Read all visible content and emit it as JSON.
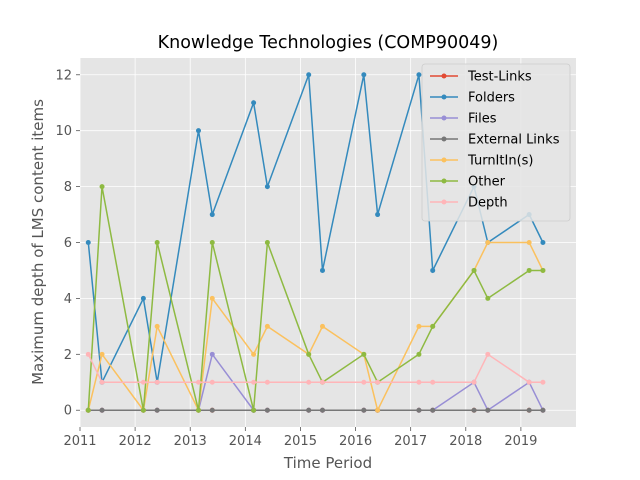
{
  "chart_data": {
    "type": "line",
    "title": "Knowledge Technologies (COMP90049)",
    "xlabel": "Time Period",
    "ylabel": "Maximum depth of LMS content items",
    "xlim": [
      2011.0,
      2020.0
    ],
    "ylim": [
      -0.6,
      12.6
    ],
    "xticks": [
      2011,
      2012,
      2013,
      2014,
      2015,
      2016,
      2017,
      2018,
      2019
    ],
    "yticks": [
      0,
      2,
      4,
      6,
      8,
      10,
      12
    ],
    "grid": true,
    "legend_position": "top-right",
    "x": [
      2011.15,
      2011.4,
      2012.15,
      2012.4,
      2013.15,
      2013.4,
      2014.15,
      2014.4,
      2015.15,
      2015.4,
      2016.15,
      2016.4,
      2017.15,
      2017.4,
      2018.15,
      2018.4,
      2019.15,
      2019.4
    ],
    "series": [
      {
        "name": "Test-Links",
        "color": "#E24A33",
        "values": [
          0,
          0,
          0,
          0,
          0,
          0,
          0,
          0,
          0,
          0,
          0,
          0,
          0,
          0,
          0,
          0,
          0,
          0
        ]
      },
      {
        "name": "Folders",
        "color": "#348ABD",
        "values": [
          6,
          1,
          4,
          1,
          10,
          7,
          11,
          8,
          12,
          5,
          12,
          7,
          12,
          5,
          8,
          6,
          7,
          6
        ]
      },
      {
        "name": "Files",
        "color": "#988ED5",
        "values": [
          0,
          0,
          0,
          0,
          0,
          2,
          0,
          0,
          0,
          0,
          0,
          0,
          0,
          0,
          1,
          0,
          1,
          0
        ]
      },
      {
        "name": "External Links",
        "color": "#777777",
        "values": [
          0,
          0,
          0,
          0,
          0,
          0,
          0,
          0,
          0,
          0,
          0,
          0,
          0,
          0,
          0,
          0,
          0,
          0
        ]
      },
      {
        "name": "TurnItIn(s)",
        "color": "#FBC15E",
        "values": [
          0,
          2,
          0,
          3,
          0,
          4,
          2,
          3,
          2,
          3,
          2,
          0,
          3,
          3,
          5,
          6,
          6,
          5
        ]
      },
      {
        "name": "Other",
        "color": "#8EBA42",
        "values": [
          0,
          8,
          0,
          6,
          0,
          6,
          0,
          6,
          2,
          1,
          2,
          1,
          2,
          3,
          5,
          4,
          5,
          5
        ]
      },
      {
        "name": "Depth",
        "color": "#FFB5B8",
        "values": [
          2,
          1,
          1,
          1,
          1,
          1,
          1,
          1,
          1,
          1,
          1,
          1,
          1,
          1,
          1,
          2,
          1,
          1
        ]
      }
    ]
  }
}
